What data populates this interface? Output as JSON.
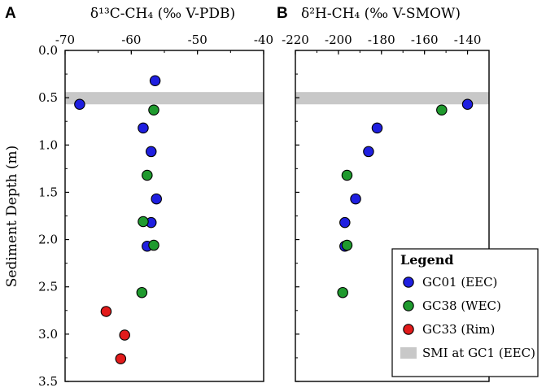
{
  "colors": {
    "gc01": "#1f1fe0",
    "gc38": "#1f9a2e",
    "gc33": "#e21b1b",
    "smi": "#c8c8c8",
    "axis": "#000000"
  },
  "chart_data": [
    {
      "type": "scatter",
      "panel_label": "A",
      "title": "δ¹³C-CH₄ (‰ V-PDB)",
      "xlabel": "δ¹³C-CH₄ (‰ V-PDB)",
      "ylabel": "Sediment Depth (m)",
      "xlim": [
        -70,
        -40
      ],
      "ylim": [
        0.0,
        3.5
      ],
      "x_ticks": [
        "-70",
        "-60",
        "-50",
        "-40"
      ],
      "y_ticks": [
        "0.0",
        "0.5",
        "1.0",
        "1.5",
        "2.0",
        "2.5",
        "3.0",
        "3.5"
      ],
      "smi_band": [
        0.44,
        0.57
      ],
      "series": [
        {
          "name": "GC01 (EEC)",
          "color_key": "gc01",
          "points": [
            {
              "x": -56.4,
              "y": 0.32
            },
            {
              "x": -67.8,
              "y": 0.57
            },
            {
              "x": -58.2,
              "y": 0.82
            },
            {
              "x": -57.0,
              "y": 1.07
            },
            {
              "x": -56.2,
              "y": 1.57
            },
            {
              "x": -57.0,
              "y": 1.82
            },
            {
              "x": -57.6,
              "y": 2.07
            }
          ]
        },
        {
          "name": "GC38 (WEC)",
          "color_key": "gc38",
          "points": [
            {
              "x": -56.6,
              "y": 0.63
            },
            {
              "x": -57.6,
              "y": 1.32
            },
            {
              "x": -58.2,
              "y": 1.81
            },
            {
              "x": -56.6,
              "y": 2.06
            },
            {
              "x": -58.4,
              "y": 2.56
            }
          ]
        },
        {
          "name": "GC33 (Rim)",
          "color_key": "gc33",
          "points": [
            {
              "x": -63.8,
              "y": 2.76
            },
            {
              "x": -61.0,
              "y": 3.01
            },
            {
              "x": -61.6,
              "y": 3.26
            }
          ]
        }
      ]
    },
    {
      "type": "scatter",
      "panel_label": "B",
      "title": "δ²H-CH₄ (‰ V-SMOW)",
      "xlabel": "δ²H-CH₄ (‰ V-SMOW)",
      "ylabel": "",
      "xlim": [
        -220,
        -130
      ],
      "ylim": [
        0.0,
        3.5
      ],
      "x_ticks": [
        "-220",
        "-200",
        "-180",
        "-160",
        "-140"
      ],
      "smi_band": [
        0.44,
        0.57
      ],
      "series": [
        {
          "name": "GC01 (EEC)",
          "color_key": "gc01",
          "points": [
            {
              "x": -140,
              "y": 0.57
            },
            {
              "x": -182,
              "y": 0.82
            },
            {
              "x": -186,
              "y": 1.07
            },
            {
              "x": -192,
              "y": 1.57
            },
            {
              "x": -197,
              "y": 1.82
            },
            {
              "x": -197,
              "y": 2.07
            }
          ]
        },
        {
          "name": "GC38 (WEC)",
          "color_key": "gc38",
          "points": [
            {
              "x": -152,
              "y": 0.63
            },
            {
              "x": -196,
              "y": 1.32
            },
            {
              "x": -196,
              "y": 2.06
            },
            {
              "x": -198,
              "y": 2.56
            }
          ]
        },
        {
          "name": "GC33 (Rim)",
          "color_key": "gc33",
          "points": []
        }
      ]
    }
  ],
  "legend": {
    "title": "Legend",
    "placement": "bottom-right",
    "items": [
      {
        "label": "GC01 (EEC)",
        "kind": "circle",
        "color_key": "gc01"
      },
      {
        "label": "GC38 (WEC)",
        "kind": "circle",
        "color_key": "gc38"
      },
      {
        "label": "GC33 (Rim)",
        "kind": "circle",
        "color_key": "gc33"
      },
      {
        "label": "SMI at GC1 (EEC)",
        "kind": "rect",
        "color_key": "smi"
      }
    ]
  }
}
